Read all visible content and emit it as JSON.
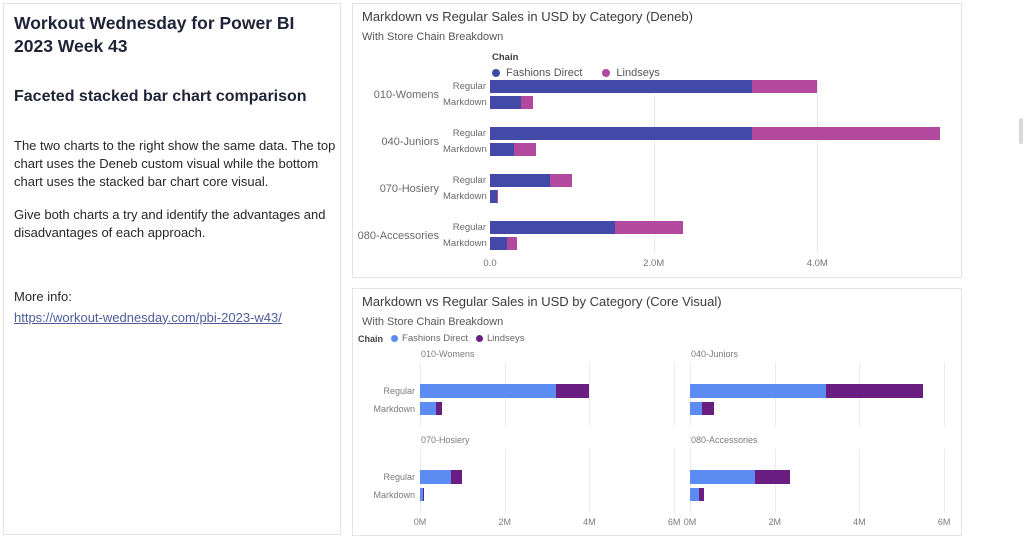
{
  "sidebar": {
    "title": "Workout Wednesday for Power BI 2023 Week 43",
    "heading": "Faceted stacked bar chart comparison",
    "paragraph1": "The two charts to the right show the same data. The top chart uses the Deneb custom visual while the bottom chart uses the stacked bar chart core visual.",
    "paragraph2": "Give both charts a try and identify the advantages and disadvantages of each approach.",
    "more_info_label": "More info:",
    "link_text": "https://workout-wednesday.com/pbi-2023-w43/"
  },
  "colors": {
    "deneb_fashions_direct": "#4349A6",
    "deneb_lindseys": "#B2499E",
    "core_fashions_direct": "#5C8BF2",
    "core_lindseys": "#6A1E82",
    "link": "#4e5c9c"
  },
  "chart_data": [
    {
      "id": "deneb",
      "type": "bar",
      "orientation": "horizontal",
      "stacked": true,
      "title": "Markdown vs Regular Sales in USD by Category (Deneb)",
      "subtitle": "With Store Chain Breakdown",
      "legend": {
        "title": "Chain",
        "position": "top-center",
        "entries": [
          {
            "label": "Fashions Direct",
            "color": "#4349A6"
          },
          {
            "label": "Lindseys",
            "color": "#B2499E"
          }
        ]
      },
      "categories": [
        "010-Womens",
        "040-Juniors",
        "070-Hosiery",
        "080-Accessories"
      ],
      "bar_types": [
        "Regular",
        "Markdown"
      ],
      "series_order": [
        "Fashions Direct",
        "Lindseys"
      ],
      "values_musd": {
        "010-Womens": {
          "Regular": [
            3.2,
            0.8
          ],
          "Markdown": [
            0.38,
            0.15
          ]
        },
        "040-Juniors": {
          "Regular": [
            3.2,
            2.3
          ],
          "Markdown": [
            0.29,
            0.27
          ]
        },
        "070-Hosiery": {
          "Regular": [
            0.73,
            0.27
          ],
          "Markdown": [
            0.08,
            0.01
          ]
        },
        "080-Accessories": {
          "Regular": [
            1.53,
            0.83
          ],
          "Markdown": [
            0.21,
            0.12
          ]
        }
      },
      "x_axis": {
        "ticks": [
          {
            "label": "0.0",
            "value": 0
          },
          {
            "label": "2.0M",
            "value": 2
          },
          {
            "label": "4.0M",
            "value": 4
          }
        ],
        "max_musd": 5.72,
        "gridline_style": "dotted"
      }
    },
    {
      "id": "core",
      "type": "bar",
      "orientation": "horizontal",
      "stacked": true,
      "layout": "small-multiples-2x2",
      "title": "Markdown vs Regular Sales in USD by Category (Core Visual)",
      "subtitle": "With Store Chain Breakdown",
      "legend": {
        "title": "Chain",
        "position": "top-left",
        "entries": [
          {
            "label": "Fashions Direct",
            "color": "#5C8BF2"
          },
          {
            "label": "Lindseys",
            "color": "#6A1E82"
          }
        ]
      },
      "categories": [
        "010-Womens",
        "040-Juniors",
        "070-Hosiery",
        "080-Accessories"
      ],
      "bar_types": [
        "Regular",
        "Markdown"
      ],
      "series_order": [
        "Fashions Direct",
        "Lindseys"
      ],
      "values_musd": {
        "010-Womens": {
          "Regular": [
            3.2,
            0.8
          ],
          "Markdown": [
            0.38,
            0.15
          ]
        },
        "040-Juniors": {
          "Regular": [
            3.2,
            2.3
          ],
          "Markdown": [
            0.29,
            0.27
          ]
        },
        "070-Hosiery": {
          "Regular": [
            0.73,
            0.27
          ],
          "Markdown": [
            0.08,
            0.01
          ]
        },
        "080-Accessories": {
          "Regular": [
            1.53,
            0.83
          ],
          "Markdown": [
            0.21,
            0.12
          ]
        }
      },
      "x_axis": {
        "ticks": [
          {
            "label": "0M",
            "value": 0
          },
          {
            "label": "2M",
            "value": 2
          },
          {
            "label": "4M",
            "value": 4
          },
          {
            "label": "6M",
            "value": 6
          }
        ],
        "max_musd": 6.28,
        "gridline_style": "solid"
      }
    }
  ]
}
